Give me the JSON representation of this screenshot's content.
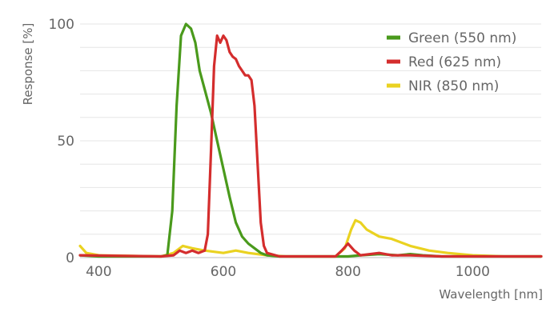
{
  "chart_data": {
    "type": "line",
    "xlabel": "Wavelength [nm]",
    "ylabel": "Response [%]",
    "xlim": [
      370,
      1110
    ],
    "ylim": [
      0,
      100
    ],
    "x_ticks": [
      400,
      600,
      800,
      1000
    ],
    "y_ticks": [
      0,
      50,
      100
    ],
    "grid": "horizontal",
    "legend_position": "top-right",
    "series": [
      {
        "name": "Green (550 nm)",
        "color": "#4a9a1c",
        "points": [
          [
            370,
            1
          ],
          [
            400,
            0.5
          ],
          [
            500,
            0.5
          ],
          [
            510,
            1
          ],
          [
            518,
            20
          ],
          [
            525,
            65
          ],
          [
            532,
            95
          ],
          [
            540,
            100
          ],
          [
            548,
            98
          ],
          [
            555,
            92
          ],
          [
            562,
            80
          ],
          [
            570,
            72
          ],
          [
            580,
            62
          ],
          [
            590,
            50
          ],
          [
            600,
            38
          ],
          [
            610,
            26
          ],
          [
            620,
            15
          ],
          [
            630,
            9
          ],
          [
            640,
            6
          ],
          [
            650,
            4
          ],
          [
            660,
            2
          ],
          [
            670,
            1
          ],
          [
            690,
            0.5
          ],
          [
            800,
            0.5
          ],
          [
            820,
            1
          ],
          [
            850,
            1.5
          ],
          [
            880,
            1
          ],
          [
            900,
            1.5
          ],
          [
            920,
            1
          ],
          [
            950,
            0.5
          ],
          [
            1110,
            0.5
          ]
        ]
      },
      {
        "name": "Red (625 nm)",
        "color": "#d42d2d",
        "points": [
          [
            370,
            1
          ],
          [
            500,
            0.5
          ],
          [
            520,
            1
          ],
          [
            530,
            3
          ],
          [
            540,
            2
          ],
          [
            550,
            3
          ],
          [
            560,
            2
          ],
          [
            570,
            3
          ],
          [
            575,
            10
          ],
          [
            580,
            45
          ],
          [
            585,
            82
          ],
          [
            590,
            95
          ],
          [
            595,
            92
          ],
          [
            600,
            95
          ],
          [
            605,
            93
          ],
          [
            610,
            88
          ],
          [
            615,
            86
          ],
          [
            620,
            85
          ],
          [
            625,
            82
          ],
          [
            630,
            80
          ],
          [
            635,
            78
          ],
          [
            640,
            78
          ],
          [
            645,
            76
          ],
          [
            650,
            65
          ],
          [
            655,
            40
          ],
          [
            660,
            15
          ],
          [
            665,
            5
          ],
          [
            670,
            2
          ],
          [
            690,
            0.5
          ],
          [
            780,
            0.5
          ],
          [
            790,
            3
          ],
          [
            800,
            6
          ],
          [
            810,
            3
          ],
          [
            820,
            1
          ],
          [
            850,
            2
          ],
          [
            870,
            1
          ],
          [
            900,
            1
          ],
          [
            950,
            0.5
          ],
          [
            1110,
            0.5
          ]
        ]
      },
      {
        "name": "NIR (850 nm)",
        "color": "#ead221",
        "points": [
          [
            370,
            5
          ],
          [
            380,
            2
          ],
          [
            400,
            1
          ],
          [
            500,
            0.5
          ],
          [
            520,
            2
          ],
          [
            535,
            5
          ],
          [
            550,
            4
          ],
          [
            570,
            3
          ],
          [
            600,
            2
          ],
          [
            620,
            3
          ],
          [
            640,
            2
          ],
          [
            670,
            1
          ],
          [
            700,
            0.5
          ],
          [
            780,
            0.5
          ],
          [
            795,
            4
          ],
          [
            805,
            12
          ],
          [
            812,
            16
          ],
          [
            820,
            15
          ],
          [
            830,
            12
          ],
          [
            850,
            9
          ],
          [
            870,
            8
          ],
          [
            900,
            5
          ],
          [
            930,
            3
          ],
          [
            960,
            2
          ],
          [
            1000,
            1
          ],
          [
            1050,
            0.5
          ],
          [
            1110,
            0.5
          ]
        ]
      }
    ]
  }
}
